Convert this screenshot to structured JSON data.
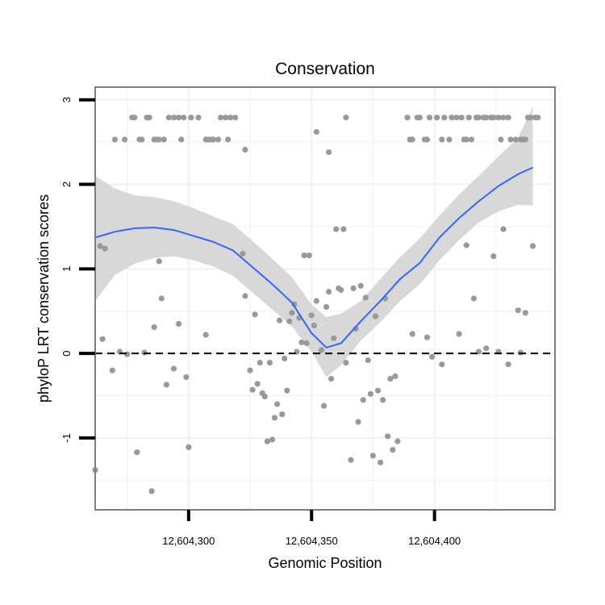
{
  "chart_data": {
    "type": "scatter",
    "title": "Conservation",
    "xlabel": "Genomic Position",
    "ylabel": "phyloP LRT conservation scores",
    "xlim": [
      12604262,
      12604449
    ],
    "ylim": [
      -1.85,
      3.15
    ],
    "x_ticks": [
      {
        "value": 12604300,
        "label": "12,604,300"
      },
      {
        "value": 12604350,
        "label": "12,604,350"
      },
      {
        "value": 12604400,
        "label": "12,604,400"
      }
    ],
    "y_ticks": [
      {
        "value": -1,
        "label": "-1"
      },
      {
        "value": 0,
        "label": "0"
      },
      {
        "value": 1,
        "label": "1"
      },
      {
        "value": 2,
        "label": "2"
      },
      {
        "value": 3,
        "label": "3"
      }
    ],
    "reference_line": {
      "y": 0,
      "style": "dashed"
    },
    "colors": {
      "points": "#999999",
      "smooth_line": "#3366ff",
      "ribbon": "#d4d4d4",
      "panel_border": "#7f7f7f",
      "grid": "#f0f0f0"
    },
    "series": [
      {
        "name": "phyloP LRT scores",
        "points": [
          [
            12604270,
            2.53
          ],
          [
            12604274,
            2.53
          ],
          [
            12604277,
            2.79
          ],
          [
            12604278,
            2.79
          ],
          [
            12604280,
            2.53
          ],
          [
            12604281,
            2.53
          ],
          [
            12604283,
            2.79
          ],
          [
            12604284,
            2.79
          ],
          [
            12604286,
            2.53
          ],
          [
            12604287,
            2.53
          ],
          [
            12604288,
            2.53
          ],
          [
            12604290,
            2.53
          ],
          [
            12604292,
            2.79
          ],
          [
            12604294,
            2.79
          ],
          [
            12604296,
            2.79
          ],
          [
            12604297,
            2.53
          ],
          [
            12604298,
            2.79
          ],
          [
            12604301,
            2.79
          ],
          [
            12604304,
            2.79
          ],
          [
            12604307,
            2.53
          ],
          [
            12604308,
            2.53
          ],
          [
            12604309,
            2.53
          ],
          [
            12604310,
            2.53
          ],
          [
            12604312,
            2.53
          ],
          [
            12604313,
            2.79
          ],
          [
            12604315,
            2.79
          ],
          [
            12604316,
            2.53
          ],
          [
            12604317,
            2.79
          ],
          [
            12604319,
            2.79
          ],
          [
            12604364,
            2.79
          ],
          [
            12604389,
            2.79
          ],
          [
            12604390,
            2.53
          ],
          [
            12604391,
            2.53
          ],
          [
            12604393,
            2.79
          ],
          [
            12604394,
            2.79
          ],
          [
            12604396,
            2.53
          ],
          [
            12604397,
            2.53
          ],
          [
            12604398,
            2.79
          ],
          [
            12604401,
            2.79
          ],
          [
            12604403,
            2.53
          ],
          [
            12604404,
            2.79
          ],
          [
            12604406,
            2.53
          ],
          [
            12604407,
            2.79
          ],
          [
            12604409,
            2.79
          ],
          [
            12604411,
            2.79
          ],
          [
            12604412,
            2.53
          ],
          [
            12604413,
            2.53
          ],
          [
            12604414,
            2.79
          ],
          [
            12604415,
            2.53
          ],
          [
            12604417,
            2.79
          ],
          [
            12604418,
            2.79
          ],
          [
            12604420,
            2.79
          ],
          [
            12604421,
            2.79
          ],
          [
            12604423,
            2.79
          ],
          [
            12604424,
            2.79
          ],
          [
            12604426,
            2.79
          ],
          [
            12604427,
            2.53
          ],
          [
            12604428,
            2.79
          ],
          [
            12604430,
            2.79
          ],
          [
            12604431,
            2.53
          ],
          [
            12604433,
            2.53
          ],
          [
            12604435,
            2.53
          ],
          [
            12604436,
            2.53
          ],
          [
            12604437,
            2.53
          ],
          [
            12604438,
            2.79
          ],
          [
            12604439,
            2.79
          ],
          [
            12604441,
            2.79
          ],
          [
            12604442,
            2.79
          ],
          [
            12604352,
            2.62
          ],
          [
            12604357,
            2.38
          ],
          [
            12604323,
            2.41
          ],
          [
            12604262,
            -1.38
          ],
          [
            12604264,
            1.27
          ],
          [
            12604265,
            0.17
          ],
          [
            12604266,
            1.24
          ],
          [
            12604269,
            -0.2
          ],
          [
            12604272,
            0.02
          ],
          [
            12604275,
            -0.01
          ],
          [
            12604279,
            -1.17
          ],
          [
            12604282,
            0.01
          ],
          [
            12604285,
            -1.63
          ],
          [
            12604286,
            0.31
          ],
          [
            12604288,
            1.09
          ],
          [
            12604289,
            0.65
          ],
          [
            12604291,
            -0.37
          ],
          [
            12604294,
            -0.18
          ],
          [
            12604296,
            0.35
          ],
          [
            12604299,
            -0.28
          ],
          [
            12604300,
            -1.11
          ],
          [
            12604307,
            0.22
          ],
          [
            12604322,
            1.18
          ],
          [
            12604323,
            0.68
          ],
          [
            12604325,
            -0.2
          ],
          [
            12604326,
            -0.43
          ],
          [
            12604327,
            0.46
          ],
          [
            12604328,
            -0.36
          ],
          [
            12604329,
            -0.11
          ],
          [
            12604330,
            -0.47
          ],
          [
            12604331,
            -0.51
          ],
          [
            12604332,
            -1.04
          ],
          [
            12604333,
            -0.11
          ],
          [
            12604334,
            -1.02
          ],
          [
            12604335,
            -0.76
          ],
          [
            12604336,
            -0.6
          ],
          [
            12604337,
            0.39
          ],
          [
            12604338,
            -0.72
          ],
          [
            12604339,
            -0.06
          ],
          [
            12604340,
            -0.44
          ],
          [
            12604341,
            0.38
          ],
          [
            12604342,
            0.48
          ],
          [
            12604343,
            0.58
          ],
          [
            12604344,
            0.02
          ],
          [
            12604345,
            0.42
          ],
          [
            12604346,
            0.13
          ],
          [
            12604347,
            1.16
          ],
          [
            12604348,
            0.12
          ],
          [
            12604349,
            1.16
          ],
          [
            12604350,
            0.45
          ],
          [
            12604351,
            0.33
          ],
          [
            12604352,
            0.62
          ],
          [
            12604354,
            0.04
          ],
          [
            12604355,
            -0.62
          ],
          [
            12604356,
            0.55
          ],
          [
            12604357,
            0.73
          ],
          [
            12604358,
            -0.3
          ],
          [
            12604359,
            0.18
          ],
          [
            12604360,
            1.47
          ],
          [
            12604361,
            0.77
          ],
          [
            12604362,
            0.75
          ],
          [
            12604363,
            1.47
          ],
          [
            12604364,
            -0.11
          ],
          [
            12604366,
            -1.26
          ],
          [
            12604367,
            0.77
          ],
          [
            12604368,
            0.29
          ],
          [
            12604369,
            -0.81
          ],
          [
            12604370,
            0.8
          ],
          [
            12604371,
            -0.55
          ],
          [
            12604372,
            0.66
          ],
          [
            12604373,
            -0.08
          ],
          [
            12604374,
            -0.48
          ],
          [
            12604375,
            -1.21
          ],
          [
            12604376,
            0.44
          ],
          [
            12604377,
            -0.44
          ],
          [
            12604378,
            -1.29
          ],
          [
            12604379,
            -0.55
          ],
          [
            12604380,
            0.65
          ],
          [
            12604381,
            -0.98
          ],
          [
            12604382,
            -0.3
          ],
          [
            12604383,
            -1.14
          ],
          [
            12604384,
            -0.27
          ],
          [
            12604385,
            -1.04
          ],
          [
            12604391,
            0.23
          ],
          [
            12604397,
            0.19
          ],
          [
            12604399,
            -0.04
          ],
          [
            12604403,
            -0.13
          ],
          [
            12604410,
            0.23
          ],
          [
            12604413,
            1.28
          ],
          [
            12604416,
            0.65
          ],
          [
            12604418,
            0.02
          ],
          [
            12604421,
            0.06
          ],
          [
            12604424,
            1.15
          ],
          [
            12604426,
            0.02
          ],
          [
            12604428,
            1.47
          ],
          [
            12604430,
            -0.13
          ],
          [
            12604434,
            0.51
          ],
          [
            12604435,
            0.01
          ],
          [
            12604437,
            0.48
          ],
          [
            12604440,
            1.27
          ]
        ]
      }
    ],
    "smooth": {
      "name": "loess fit",
      "x": [
        12604262,
        12604270,
        12604278,
        12604286,
        12604294,
        12604302,
        12604310,
        12604318,
        12604326,
        12604334,
        12604342,
        12604350,
        12604356,
        12604362,
        12604370,
        12604378,
        12604386,
        12604394,
        12604402,
        12604410,
        12604418,
        12604426,
        12604434,
        12604440
      ],
      "y": [
        1.37,
        1.44,
        1.48,
        1.49,
        1.46,
        1.39,
        1.32,
        1.22,
        1.02,
        0.82,
        0.6,
        0.24,
        0.07,
        0.12,
        0.38,
        0.62,
        0.88,
        1.07,
        1.37,
        1.6,
        1.8,
        1.98,
        2.12,
        2.2
      ],
      "lower": [
        0.62,
        0.93,
        1.06,
        1.13,
        1.15,
        1.1,
        1.03,
        0.92,
        0.72,
        0.52,
        0.32,
        0.02,
        -0.28,
        -0.14,
        0.15,
        0.37,
        0.62,
        0.82,
        1.1,
        1.34,
        1.55,
        1.68,
        1.76,
        1.75
      ],
      "upper": [
        2.1,
        1.95,
        1.87,
        1.85,
        1.8,
        1.72,
        1.62,
        1.53,
        1.33,
        1.12,
        0.9,
        0.58,
        0.43,
        0.47,
        0.62,
        0.88,
        1.14,
        1.36,
        1.63,
        1.88,
        2.1,
        2.33,
        2.55,
        2.92
      ]
    }
  }
}
